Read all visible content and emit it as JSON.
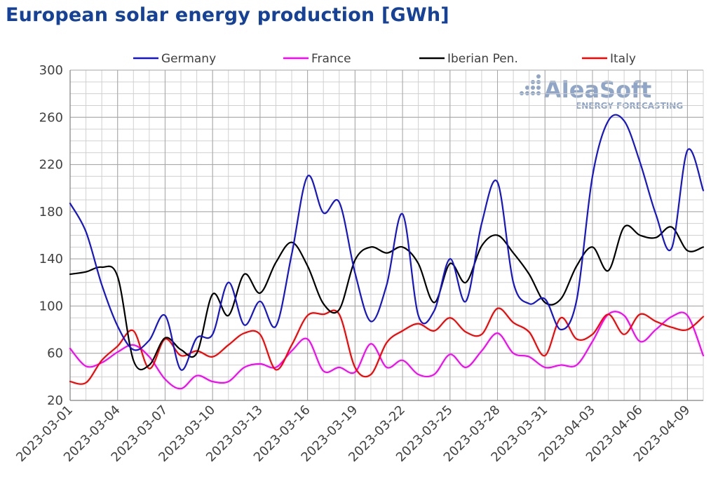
{
  "chart_data": {
    "type": "line",
    "title": "European solar energy production [GWh]",
    "ylim": [
      20,
      300
    ],
    "y_ticks": [
      20,
      60,
      100,
      140,
      180,
      220,
      260,
      300
    ],
    "x_tick_labels": [
      "2023-03-01",
      "2023-03-04",
      "2023-03-07",
      "2023-03-10",
      "2023-03-13",
      "2023-03-16",
      "2023-03-19",
      "2023-03-22",
      "2023-03-25",
      "2023-03-28",
      "2023-03-31",
      "2023-04-03",
      "2023-04-06",
      "2023-04-09"
    ],
    "x": [
      "2023-03-01",
      "2023-03-02",
      "2023-03-03",
      "2023-03-04",
      "2023-03-05",
      "2023-03-06",
      "2023-03-07",
      "2023-03-08",
      "2023-03-09",
      "2023-03-10",
      "2023-03-11",
      "2023-03-12",
      "2023-03-13",
      "2023-03-14",
      "2023-03-15",
      "2023-03-16",
      "2023-03-17",
      "2023-03-18",
      "2023-03-19",
      "2023-03-20",
      "2023-03-21",
      "2023-03-22",
      "2023-03-23",
      "2023-03-24",
      "2023-03-25",
      "2023-03-26",
      "2023-03-27",
      "2023-03-28",
      "2023-03-29",
      "2023-03-30",
      "2023-03-31",
      "2023-04-01",
      "2023-04-02",
      "2023-04-03",
      "2023-04-04",
      "2023-04-05",
      "2023-04-06",
      "2023-04-07",
      "2023-04-08",
      "2023-04-09",
      "2023-04-10"
    ],
    "grid": true,
    "legend_position": "top",
    "series": [
      {
        "name": "Germany",
        "color": "#1414d2",
        "values": [
          187,
          163,
          118,
          83,
          63,
          71,
          92,
          46,
          73,
          76,
          120,
          84,
          104,
          83,
          144,
          210,
          179,
          188,
          128,
          87,
          118,
          178,
          92,
          96,
          140,
          104,
          170,
          205,
          120,
          102,
          106,
          80,
          105,
          210,
          257,
          257,
          222,
          178,
          149,
          232,
          198
        ]
      },
      {
        "name": "France",
        "color": "#ff00ff",
        "values": [
          64,
          49,
          52,
          61,
          67,
          57,
          38,
          30,
          41,
          36,
          36,
          48,
          51,
          48,
          62,
          72,
          45,
          48,
          44,
          68,
          48,
          54,
          42,
          42,
          59,
          48,
          62,
          77,
          60,
          57,
          48,
          50,
          50,
          70,
          93,
          92,
          70,
          80,
          91,
          92,
          58
        ]
      },
      {
        "name": "Iberian Pen.",
        "color": "#000000",
        "values": [
          127,
          129,
          133,
          125,
          54,
          50,
          73,
          63,
          60,
          110,
          92,
          127,
          111,
          137,
          154,
          134,
          102,
          97,
          139,
          150,
          145,
          150,
          136,
          103,
          136,
          120,
          151,
          160,
          145,
          127,
          103,
          106,
          134,
          150,
          130,
          167,
          160,
          158,
          167,
          147,
          150
        ]
      },
      {
        "name": "Italy",
        "color": "#ff0000",
        "values": [
          36,
          35,
          54,
          66,
          79,
          47,
          72,
          58,
          62,
          57,
          67,
          77,
          76,
          46,
          67,
          92,
          93,
          93,
          48,
          42,
          69,
          79,
          85,
          79,
          90,
          78,
          76,
          98,
          86,
          78,
          58,
          90,
          72,
          76,
          93,
          76,
          93,
          87,
          82,
          80,
          91
        ]
      }
    ]
  },
  "branding": {
    "logo_text": "AleaSoft",
    "logo_subtext": "ENERGY FORECASTING"
  }
}
